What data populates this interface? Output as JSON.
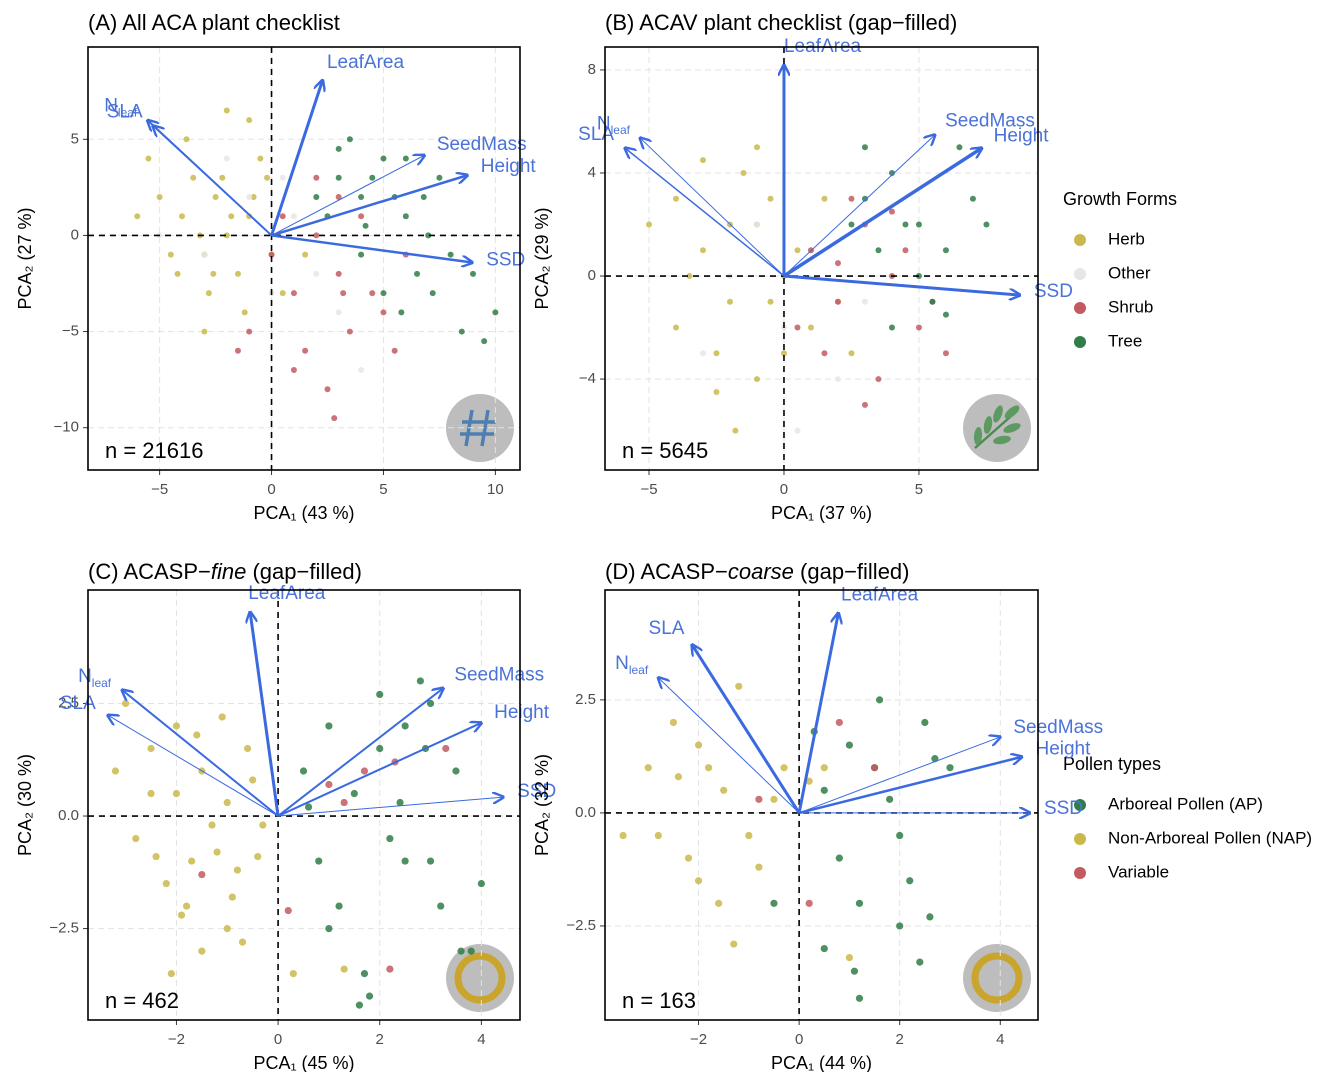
{
  "chart_data": [
    {
      "type": "scatter",
      "title": "(A) All ACA plant checklist",
      "x_label": "PCA₁ (43 %)",
      "y_label": "PCA₂ (27 %)",
      "annotation": "n = 21616",
      "legend_title": "Growth Forms",
      "xlim": [
        -8.2,
        11.1
      ],
      "ylim": [
        -12.2,
        9.8
      ],
      "xticks": [
        {
          "value": -5,
          "label": "−5"
        },
        0,
        5,
        10
      ],
      "yticks": [
        {
          "value": -10,
          "label": "−10"
        },
        {
          "value": -5,
          "label": "−5"
        },
        0,
        5
      ],
      "series": [
        {
          "name": "Herb",
          "color": "#c9b94b",
          "x": [
            -4,
            -3.5,
            -3,
            -2.5,
            -2,
            -1.5,
            -1,
            -0.5,
            0,
            -5,
            -4.5,
            -3.8,
            -2.8,
            -2.2,
            -1.8,
            -1.2,
            -0.8,
            -3.2,
            -2.6,
            -6,
            -5.5,
            -1,
            0.5,
            -2,
            -3,
            -4.2,
            -0.2,
            1.5
          ],
          "values": [
            1,
            3,
            -1,
            2,
            0,
            -2,
            1,
            4,
            -1,
            2,
            -1,
            5,
            -3,
            3,
            1,
            -4,
            2,
            0,
            -2,
            1,
            4,
            6,
            -3,
            6.5,
            -5,
            -2,
            3,
            -1
          ]
        },
        {
          "name": "Other",
          "color": "#e6e6e6",
          "x": [
            -3,
            -1,
            0,
            1,
            2,
            -5,
            3,
            -2,
            0.5,
            4
          ],
          "values": [
            -1,
            2,
            -3,
            1,
            -2,
            0,
            -4,
            4,
            3,
            -7
          ]
        },
        {
          "name": "Shrub",
          "color": "#c25a60",
          "x": [
            0,
            1,
            2,
            3,
            4,
            5,
            1.5,
            2.5,
            3.5,
            -1,
            0.5,
            2,
            4.5,
            6,
            3,
            1,
            -1.5,
            2.8,
            5.5,
            3.2
          ],
          "values": [
            -1,
            -3,
            0,
            -2,
            1,
            -4,
            -6,
            -8,
            -5,
            -5,
            1,
            3,
            -3,
            -1,
            2,
            -7,
            -6,
            -9.5,
            -6,
            -3
          ]
        },
        {
          "name": "Tree",
          "color": "#2f7d47",
          "x": [
            3,
            4,
            5,
            6,
            7,
            8,
            3.5,
            4.5,
            5.5,
            6.5,
            2.5,
            7.5,
            4,
            5,
            6,
            9,
            10,
            8.5,
            3,
            5.8,
            4.2,
            6.8,
            7.2,
            2,
            9.5
          ],
          "values": [
            3,
            2,
            4,
            1,
            0,
            -1,
            5,
            3,
            2,
            -2,
            1,
            3,
            -1,
            -3,
            4,
            -2,
            -4,
            -5,
            4.5,
            -4,
            0.5,
            2,
            -3,
            2,
            -5.5
          ]
        }
      ],
      "arrows": [
        {
          "label": "LeafArea",
          "x": 2.28,
          "y": 8.07,
          "lw": 3
        },
        {
          "label": "N",
          "label_sub": "leaf",
          "x": -5.54,
          "y": 5.99,
          "lw": 2
        },
        {
          "label": "SLA",
          "x": -5.3,
          "y": 5.7,
          "lw": 1.5
        },
        {
          "label": "SeedMass",
          "x": 6.83,
          "y": 4.17,
          "lw": 1
        },
        {
          "label": "Height",
          "x": 8.75,
          "y": 3.13,
          "lw": 2.5
        },
        {
          "label": "SSD",
          "x": 8.97,
          "y": -1.41,
          "lw": 2.5
        }
      ]
    },
    {
      "type": "scatter",
      "title": "(B) ACAV plant checklist (gap−filled)",
      "x_label": "PCA₁ (37 %)",
      "y_label": "PCA₂ (29 %)",
      "annotation": "n = 5645",
      "xlim": [
        -6.63,
        9.41
      ],
      "ylim": [
        -7.53,
        8.89
      ],
      "xticks": [
        {
          "value": -5,
          "label": "−5"
        },
        0,
        5
      ],
      "yticks": [
        {
          "value": -4,
          "label": "−4"
        },
        0,
        4,
        8
      ],
      "series": [
        {
          "name": "Herb",
          "color": "#c9b94b",
          "x": [
            -3,
            -2,
            -1,
            0,
            1,
            -4,
            -2.5,
            -1.5,
            -0.5,
            0.5,
            -3.5,
            -1,
            -2,
            0,
            2,
            -5,
            -4,
            -1,
            1.5,
            -2.5,
            -0.5,
            -3,
            2.5,
            -1.8
          ],
          "values": [
            1,
            -1,
            2,
            0,
            -2,
            3,
            -3,
            4,
            -1,
            1,
            0,
            -4,
            2,
            -3,
            -1,
            2,
            -2,
            5,
            3,
            -4.5,
            3,
            4.5,
            -3,
            -6
          ]
        },
        {
          "name": "Other",
          "color": "#e6e6e6",
          "x": [
            -2,
            0,
            1,
            -1,
            2,
            -3,
            3,
            0.5
          ],
          "values": [
            0,
            -2,
            1,
            2,
            -4,
            -3,
            -1,
            -6
          ]
        },
        {
          "name": "Shrub",
          "color": "#c25a60",
          "x": [
            1,
            2,
            3,
            4,
            5,
            1.5,
            2.5,
            3.5,
            4.5,
            6,
            0.5,
            2,
            5.5,
            3,
            4
          ],
          "values": [
            1,
            -1,
            2,
            0,
            -2,
            -3,
            3,
            -4,
            1,
            -3,
            -2,
            0.5,
            -1,
            -5,
            2.5
          ]
        },
        {
          "name": "Tree",
          "color": "#2f7d47",
          "x": [
            3,
            4,
            5,
            6,
            7,
            3.5,
            4.5,
            5.5,
            6.5,
            2.5,
            4,
            5,
            7.5,
            6,
            3
          ],
          "values": [
            3,
            4,
            2,
            1,
            3,
            1,
            2,
            -1,
            5,
            2,
            -2,
            0,
            2,
            -1.5,
            5
          ]
        }
      ],
      "arrows": [
        {
          "label": "LeafArea",
          "x": 0,
          "y": 8.19,
          "lw": 3
        },
        {
          "label": "N",
          "label_sub": "leaf",
          "x": -5.33,
          "y": 5.36,
          "lw": 1
        },
        {
          "label": "SLA",
          "x": -5.89,
          "y": 4.97,
          "lw": 1.5
        },
        {
          "label": "SeedMass",
          "x": 5.59,
          "y": 5.48,
          "lw": 1
        },
        {
          "label": "Height",
          "x": 7.33,
          "y": 4.97,
          "lw": 3.5
        },
        {
          "label": "SSD",
          "x": 8.74,
          "y": -0.74,
          "lw": 3
        }
      ]
    },
    {
      "type": "scatter",
      "title": "(C) ACASP−fine (gap−filled)",
      "title_italic": "fine",
      "x_label": "PCA₁ (45 %)",
      "y_label": "PCA₂ (30 %)",
      "annotation": "n = 462",
      "legend_title": "Pollen types",
      "xlim": [
        -3.74,
        4.76
      ],
      "ylim": [
        -4.53,
        5.02
      ],
      "xticks": [
        {
          "value": -2,
          "label": "−2"
        },
        0,
        2,
        4
      ],
      "yticks": [
        {
          "value": -2.5,
          "label": "−2.5"
        },
        {
          "value": 0,
          "label": "0.0"
        },
        2.5
      ],
      "series": [
        {
          "name": "Arboreal Pollen (AP)",
          "color": "#2f7d47",
          "x": [
            0.5,
            1,
            1.5,
            2,
            2.5,
            3,
            3.5,
            4,
            0.8,
            1.2,
            2.2,
            2.8,
            3.2,
            3.8,
            1.8,
            2.5,
            3,
            1,
            1.6,
            2.4,
            3.6,
            0.6,
            2,
            2.9,
            1.7
          ],
          "values": [
            1,
            2,
            0.5,
            1.5,
            -1,
            2.5,
            1,
            -1.5,
            -1,
            -2,
            -0.5,
            3,
            -2,
            -3,
            -4,
            2,
            -1,
            -2.5,
            -4.2,
            0.3,
            -3,
            0.2,
            2.7,
            1.5,
            -3.5
          ]
        },
        {
          "name": "Non-Arboreal Pollen (NAP)",
          "color": "#c9b94b",
          "x": [
            -3,
            -2.5,
            -2,
            -1.5,
            -1,
            -0.5,
            -2.8,
            -2.2,
            -1.8,
            -1.2,
            -0.8,
            -0.3,
            -2,
            -1.5,
            -1,
            -2.5,
            -1.7,
            -0.6,
            -3.2,
            -1.3,
            -0.9,
            -2.1,
            -1.6,
            -0.4,
            0.3,
            1.3,
            -1.9,
            -0.7,
            -2.4,
            -1.1
          ],
          "values": [
            2.5,
            1.5,
            0.5,
            1,
            0.3,
            0.8,
            -0.5,
            -1.5,
            -2,
            -0.8,
            -1.2,
            -0.2,
            2,
            -3,
            -2.5,
            0.5,
            -1,
            1.5,
            1,
            -0.2,
            -1.8,
            -3.5,
            1.8,
            -0.9,
            -3.5,
            -3.4,
            -2.2,
            -2.8,
            -0.9,
            2.2
          ]
        },
        {
          "name": "Variable",
          "color": "#c25a60",
          "x": [
            1,
            1.7,
            2.3,
            -1.5,
            3.3,
            0.2,
            1.3,
            2.2
          ],
          "values": [
            0.7,
            1,
            1.2,
            -1.3,
            1.5,
            -2.1,
            0.3,
            -3.4
          ]
        }
      ],
      "arrows": [
        {
          "label": "LeafArea",
          "x": -0.55,
          "y": 4.53,
          "lw": 3
        },
        {
          "label": "N",
          "label_sub": "leaf",
          "x": -3.07,
          "y": 2.8,
          "lw": 2
        },
        {
          "label": "SLA",
          "x": -3.35,
          "y": 2.24,
          "lw": 1
        },
        {
          "label": "SeedMass",
          "x": 3.25,
          "y": 2.84,
          "lw": 2
        },
        {
          "label": "Height",
          "x": 4.0,
          "y": 2.07,
          "lw": 2
        },
        {
          "label": "SSD",
          "x": 4.43,
          "y": 0.42,
          "lw": 1
        }
      ]
    },
    {
      "type": "scatter",
      "title": "(D) ACASP−coarse (gap−filled)",
      "title_italic": "coarse",
      "x_label": "PCA₁ (44 %)",
      "y_label": "PCA₂ (32 %)",
      "annotation": "n = 163",
      "xlim": [
        -3.86,
        4.75
      ],
      "ylim": [
        -4.58,
        4.93
      ],
      "xticks": [
        {
          "value": -2,
          "label": "−2"
        },
        0,
        2,
        4
      ],
      "yticks": [
        {
          "value": -2.5,
          "label": "−2.5"
        },
        {
          "value": 0,
          "label": "0.0"
        },
        2.5
      ],
      "series": [
        {
          "name": "Arboreal Pollen (AP)",
          "color": "#2f7d47",
          "x": [
            0.5,
            1,
            1.5,
            2,
            2.5,
            3,
            0.8,
            1.2,
            1.8,
            2.2,
            2.7,
            -0.5,
            0.5,
            1.1,
            2,
            2.6,
            0.3,
            1.6,
            2.4,
            1.2
          ],
          "values": [
            0.5,
            1.5,
            1,
            -0.5,
            2,
            1,
            -1,
            -2,
            0.3,
            -1.5,
            1.2,
            -2,
            -3,
            -3.5,
            -2.5,
            -2.3,
            1.8,
            2.5,
            -3.3,
            -4.1
          ]
        },
        {
          "name": "Non-Arboreal Pollen (NAP)",
          "color": "#c9b94b",
          "x": [
            -3,
            -2.5,
            -2,
            -1.5,
            -1,
            -0.5,
            -2.8,
            -2.2,
            -1.8,
            -1.2,
            -0.8,
            -3.5,
            -2.4,
            -1.6,
            -0.3,
            -2,
            0.5,
            1,
            -1.3,
            0.2
          ],
          "values": [
            1,
            2,
            1.5,
            0.5,
            -0.5,
            0.3,
            -0.5,
            -1,
            1,
            2.8,
            -1.2,
            -0.5,
            0.8,
            -2,
            1,
            -1.5,
            1,
            -3.2,
            -2.9,
            0.7
          ]
        },
        {
          "name": "Variable",
          "color": "#c25a60",
          "x": [
            0.8,
            1.5,
            0.2,
            -0.8
          ],
          "values": [
            2,
            1,
            -2,
            0.3
          ]
        }
      ],
      "arrows": [
        {
          "label": "LeafArea",
          "x": 0.78,
          "y": 4.42,
          "lw": 3
        },
        {
          "label": "N",
          "label_sub": "leaf",
          "x": -2.8,
          "y": 2.99,
          "lw": 1
        },
        {
          "label": "SLA",
          "x": -2.13,
          "y": 3.72,
          "lw": 3
        },
        {
          "label": "SeedMass",
          "x": 4.0,
          "y": 1.68,
          "lw": 1
        },
        {
          "label": "Height",
          "x": 4.43,
          "y": 1.24,
          "lw": 2.5
        },
        {
          "label": "SSD",
          "x": 4.59,
          "y": 0,
          "lw": 1
        }
      ]
    }
  ]
}
